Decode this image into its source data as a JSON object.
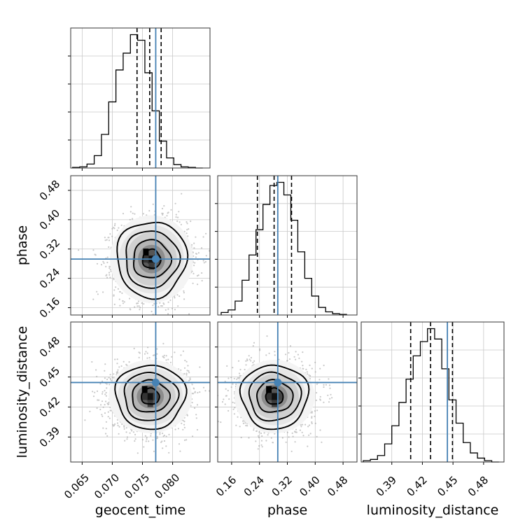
{
  "chart_data": {
    "type": "corner",
    "parameters": [
      "geocent_time",
      "phase",
      "luminosity_distance"
    ],
    "injection": {
      "geocent_time": 0.0772,
      "phase": 0.2925,
      "luminosity_distance": 0.4445
    },
    "injection_color": "#4682b4",
    "grid": true,
    "diagonal": [
      {
        "name": "geocent_time",
        "xlabel": "geocent_time",
        "xlim": [
          0.0631,
          0.0862
        ],
        "ticks": [
          0.065,
          0.07,
          0.075,
          0.08
        ],
        "tick_labels": [
          "0.065",
          "0.070",
          "0.075",
          "0.080"
        ],
        "quantiles": [
          0.0741,
          0.0762,
          0.0781
        ],
        "bin_edges": [
          0.0634,
          0.0646,
          0.0658,
          0.067,
          0.0682,
          0.0694,
          0.0706,
          0.0718,
          0.073,
          0.0742,
          0.0754,
          0.0766,
          0.0778,
          0.079,
          0.0802,
          0.0814,
          0.0826,
          0.0838,
          0.085
        ],
        "counts": [
          1,
          2,
          7,
          22,
          60,
          118,
          175,
          205,
          238,
          228,
          170,
          102,
          48,
          18,
          6,
          2,
          1,
          0
        ]
      },
      {
        "name": "phase",
        "xlabel": "phase",
        "xlim": [
          0.12,
          0.52
        ],
        "ticks": [
          0.16,
          0.24,
          0.32,
          0.4,
          0.48
        ],
        "tick_labels": [
          "0.16",
          "0.24",
          "0.32",
          "0.40",
          "0.48"
        ],
        "quantiles": [
          0.234,
          0.282,
          0.332
        ],
        "bin_edges": [
          0.13,
          0.15,
          0.17,
          0.19,
          0.21,
          0.23,
          0.25,
          0.27,
          0.29,
          0.31,
          0.33,
          0.35,
          0.37,
          0.39,
          0.41,
          0.43,
          0.45,
          0.47,
          0.49
        ],
        "counts": [
          4,
          8,
          22,
          55,
          95,
          135,
          175,
          205,
          210,
          190,
          150,
          100,
          58,
          30,
          12,
          5,
          2,
          1
        ]
      },
      {
        "name": "luminosity_distance",
        "xlabel": "luminosity_distance",
        "xlim": [
          0.36,
          0.5
        ],
        "ticks": [
          0.39,
          0.42,
          0.45,
          0.48
        ],
        "tick_labels": [
          "0.39",
          "0.42",
          "0.45",
          "0.48"
        ],
        "quantiles": [
          0.4085,
          0.428,
          0.4495
        ],
        "bin_edges": [
          0.362,
          0.369,
          0.376,
          0.383,
          0.39,
          0.397,
          0.404,
          0.411,
          0.418,
          0.425,
          0.432,
          0.439,
          0.446,
          0.453,
          0.46,
          0.467,
          0.474,
          0.481,
          0.488,
          0.495
        ],
        "counts": [
          1,
          2,
          5,
          14,
          28,
          46,
          64,
          82,
          93,
          103,
          95,
          72,
          48,
          30,
          15,
          7,
          3,
          1,
          0
        ]
      }
    ],
    "panels_2d": [
      {
        "x": "geocent_time",
        "y": "phase",
        "center": [
          0.0765,
          0.2925
        ],
        "sigma": [
          0.003,
          0.052
        ],
        "ylabel": "phase",
        "ylim": [
          0.14,
          0.52
        ],
        "yticks": [
          0.16,
          0.24,
          0.32,
          0.4,
          0.48
        ],
        "ytick_labels": [
          "0.16",
          "0.24",
          "0.32",
          "0.40",
          "0.48"
        ]
      },
      {
        "x": "geocent_time",
        "y": "luminosity_distance",
        "center": [
          0.0763,
          0.4305
        ],
        "sigma": [
          0.003,
          0.016
        ],
        "ylabel": "luminosity_distance",
        "ylim": [
          0.365,
          0.505
        ],
        "yticks": [
          0.39,
          0.42,
          0.45,
          0.48
        ],
        "ytick_labels": [
          "0.39",
          "0.42",
          "0.45",
          "0.48"
        ]
      },
      {
        "x": "phase",
        "y": "luminosity_distance",
        "center": [
          0.283,
          0.4305
        ],
        "sigma": [
          0.05,
          0.016
        ],
        "ylim": [
          0.365,
          0.505
        ]
      }
    ],
    "contour_levels_sigma": [
      0.5,
      1.0,
      1.5,
      2.0
    ]
  }
}
